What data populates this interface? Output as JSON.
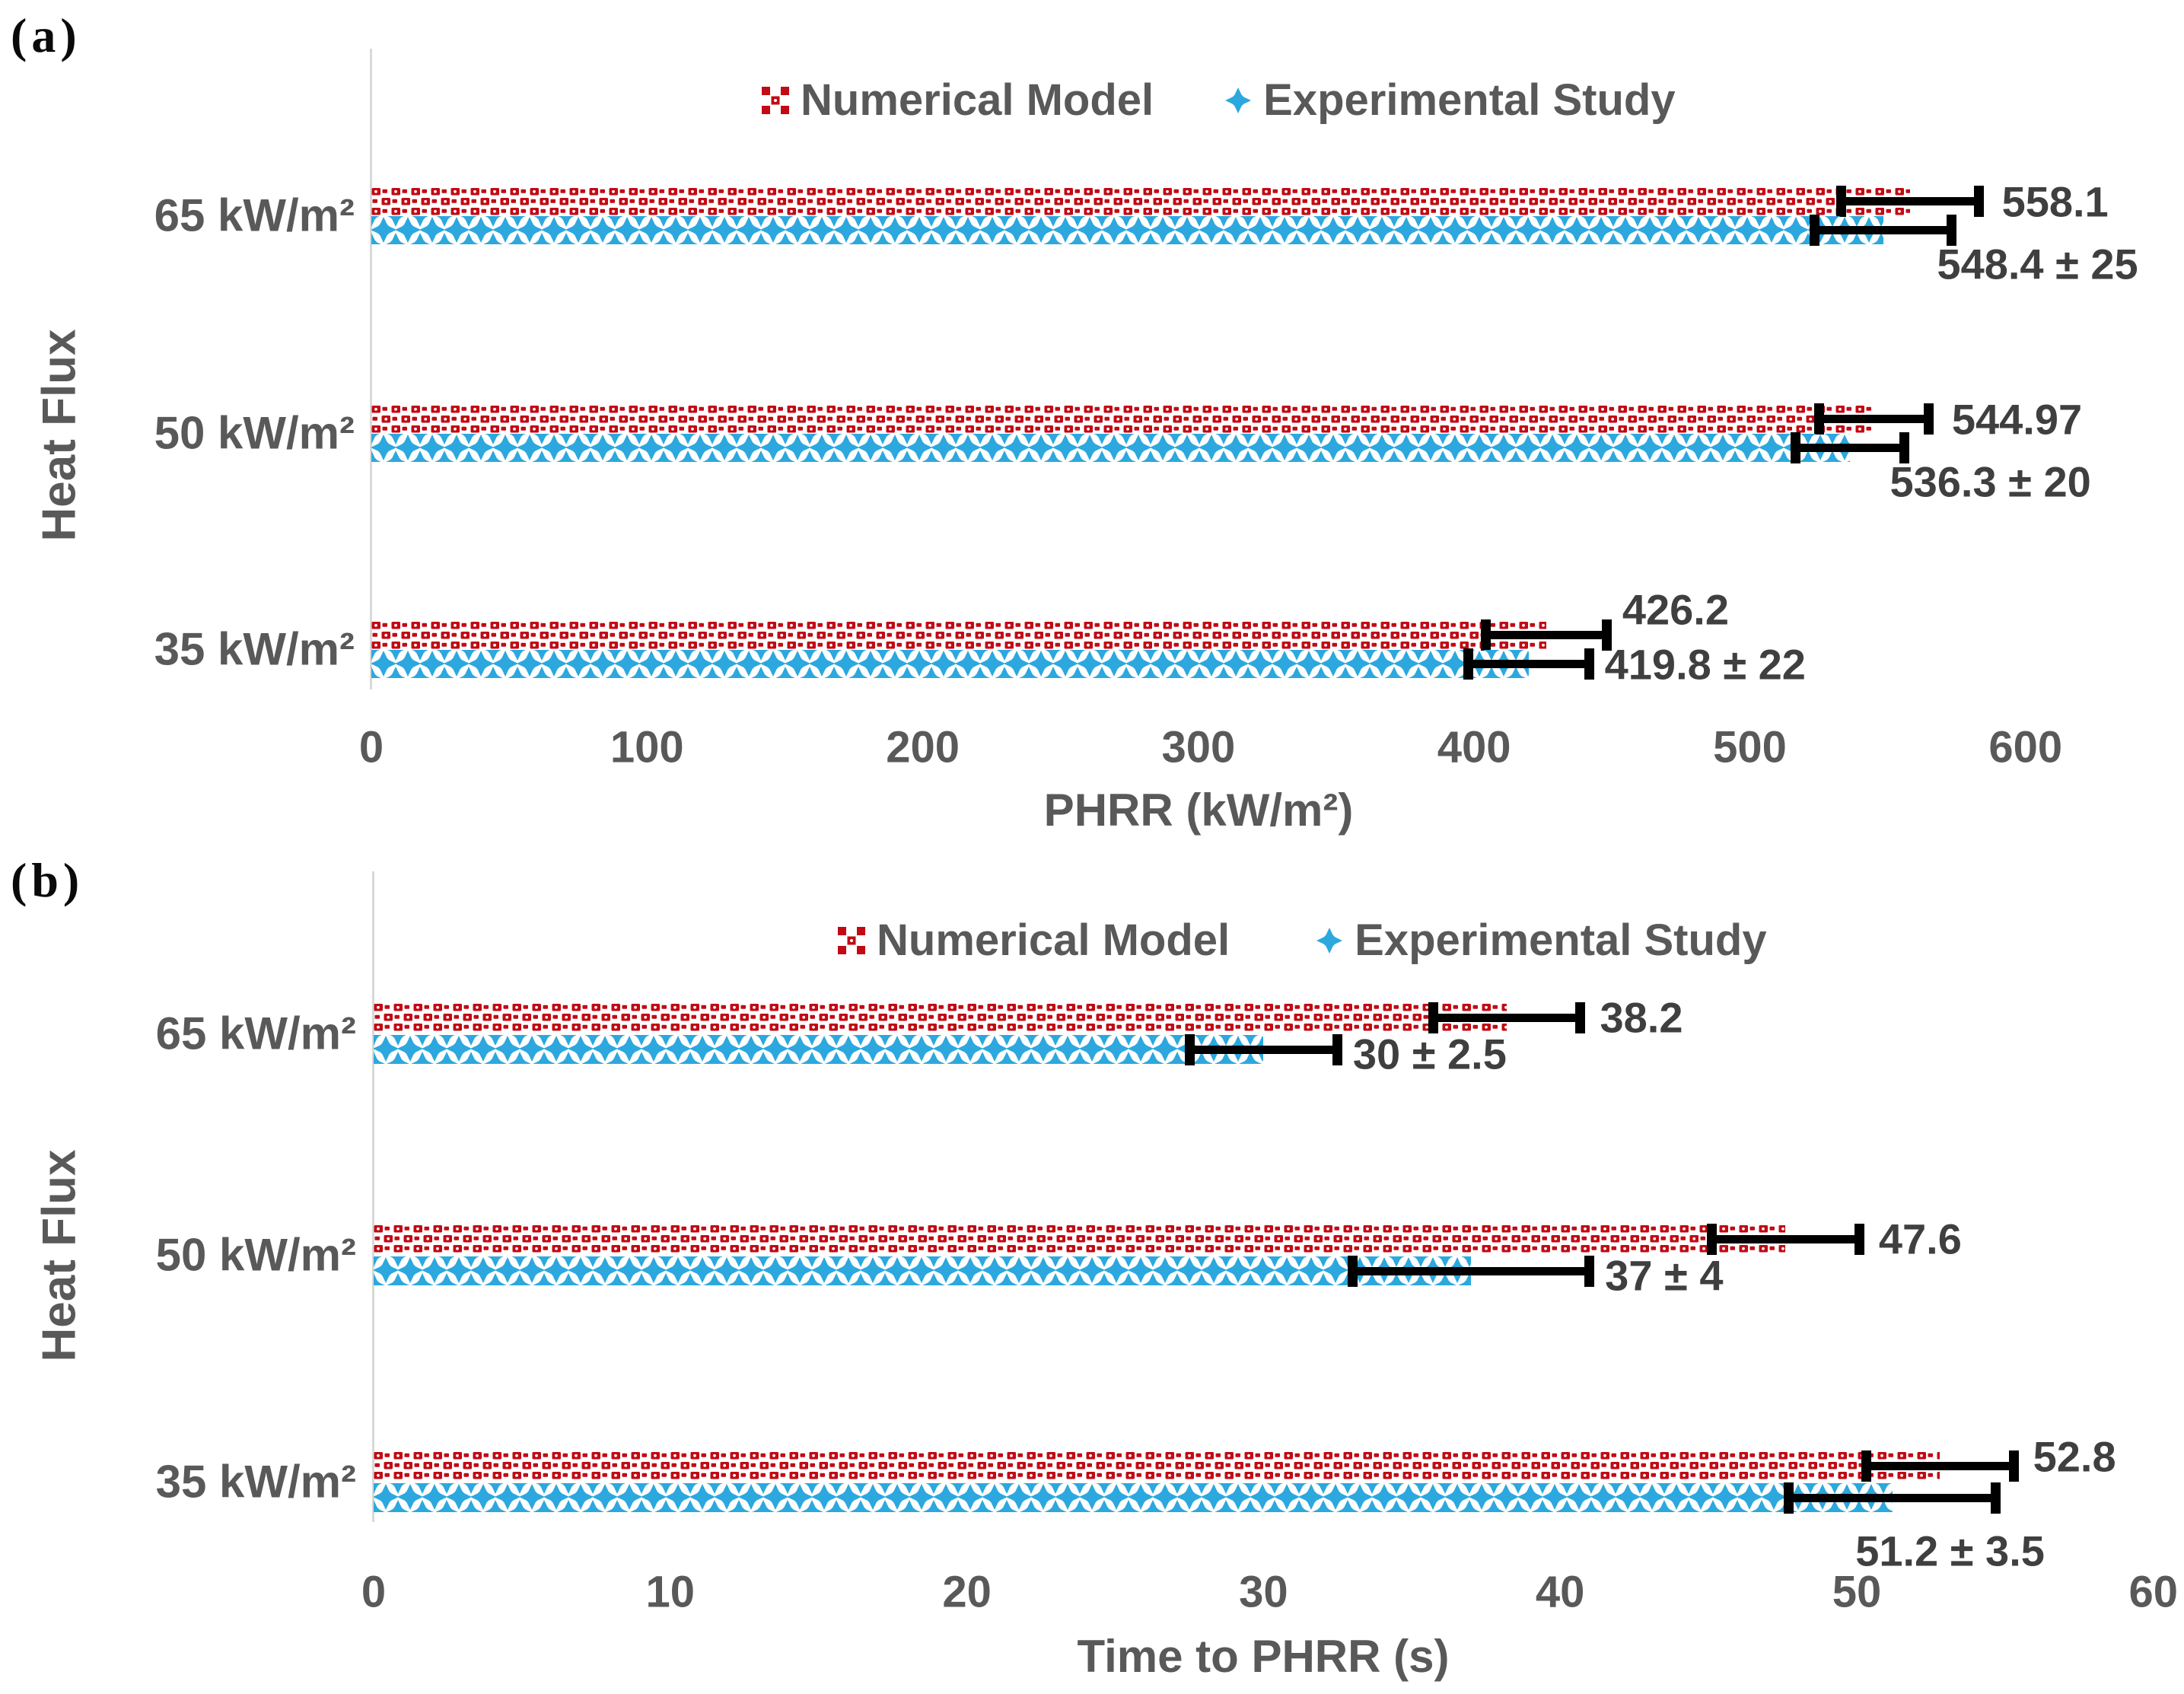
{
  "colors": {
    "numerical_red": "#C20A14",
    "experimental_blue": "#2CA8DE",
    "error_bar_black": "#000000",
    "axis_text_gray": "#595959",
    "value_label_gray": "#3F3F3F",
    "axis_line_gray": "#D9D9D9",
    "background": "#FFFFFF"
  },
  "chart_data": [
    {
      "panel": "(a)",
      "type": "bar",
      "orientation": "horizontal",
      "categories": [
        "65 kW/m²",
        "50 kW/m²",
        "35 kW/m²"
      ],
      "series": [
        {
          "name": "Numerical Model",
          "marker": "red-checker",
          "color": "#C20A14",
          "values": [
            558.1,
            544.97,
            426.2
          ],
          "error_bars": [
            25,
            20,
            22
          ],
          "data_labels": [
            "558.1",
            "544.97",
            "426.2"
          ]
        },
        {
          "name": "Experimental Study",
          "marker": "blue-diamond",
          "color": "#2CA8DE",
          "values": [
            548.4,
            536.3,
            419.8
          ],
          "error_bars": [
            25,
            20,
            22
          ],
          "data_labels": [
            "548.4 ± 25",
            "536.3 ± 20",
            "419.8 ± 22"
          ]
        }
      ],
      "xlabel": "PHRR (kW/m²)",
      "ylabel": "Heat Flux",
      "xlim": [
        0,
        600
      ],
      "xticks": [
        "0",
        "100",
        "200",
        "300",
        "400",
        "500",
        "600"
      ],
      "grid": false,
      "legend_position": "top-center"
    },
    {
      "panel": "(b)",
      "type": "bar",
      "orientation": "horizontal",
      "categories": [
        "65 kW/m²",
        "50 kW/m²",
        "35 kW/m²"
      ],
      "series": [
        {
          "name": "Numerical Model",
          "marker": "red-checker",
          "color": "#C20A14",
          "values": [
            38.2,
            47.6,
            52.8
          ],
          "error_bars": [
            2.5,
            2.5,
            2.5
          ],
          "data_labels": [
            "38.2",
            "47.6",
            "52.8"
          ]
        },
        {
          "name": "Experimental Study",
          "marker": "blue-diamond",
          "color": "#2CA8DE",
          "values": [
            30,
            37,
            51.2
          ],
          "error_bars": [
            2.5,
            4,
            3.5
          ],
          "data_labels": [
            "30 ± 2.5",
            "37 ± 4",
            "51.2 ± 3.5"
          ]
        }
      ],
      "xlabel": "Time to PHRR (s)",
      "ylabel": "Heat Flux",
      "xlim": [
        0,
        60
      ],
      "xticks": [
        "0",
        "10",
        "20",
        "30",
        "40",
        "50",
        "60"
      ],
      "grid": false,
      "legend_position": "top-center"
    }
  ]
}
